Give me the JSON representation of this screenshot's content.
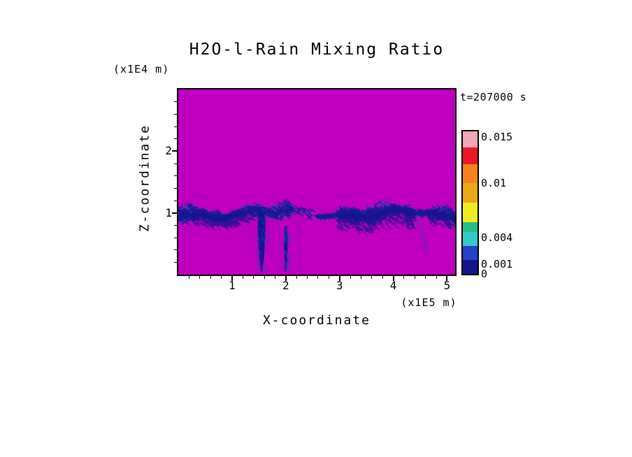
{
  "chart_data": {
    "type": "heatmap",
    "title": "H2O-l-Rain Mixing Ratio",
    "timestamp": "t=207000 s",
    "xlabel": "X-coordinate",
    "x_unit": "(x1E5 m)",
    "ylabel": "Z-coordinate",
    "y_unit": "(x1E4 m)",
    "x_axis": {
      "min": 0,
      "max": 5.15,
      "major_ticks": [
        {
          "value": 1,
          "label": "1"
        },
        {
          "value": 2,
          "label": "2"
        },
        {
          "value": 3,
          "label": "3"
        },
        {
          "value": 4,
          "label": "4"
        },
        {
          "value": 5,
          "label": "5"
        }
      ],
      "minor_step": 0.2
    },
    "z_axis": {
      "min": 0,
      "max": 3,
      "major_ticks": [
        {
          "value": 1,
          "label": "1"
        },
        {
          "value": 2,
          "label": "2"
        }
      ],
      "minor_step": 0.2
    },
    "field": {
      "background_color": "#BE00BE",
      "streak_colors": [
        "#14148C",
        "#2840C8",
        "#4868D8"
      ],
      "rain_layer_z": 1.0,
      "band_gap_x": [
        2.12,
        2.6
      ],
      "shafts_x": [
        1.55,
        2.0
      ],
      "weak_streak_x": 4.45
    },
    "colorbar": {
      "segments": [
        {
          "color": "#F0A8B8",
          "h": 0.112
        },
        {
          "color": "#E81828",
          "h": 0.118
        },
        {
          "color": "#F5821F",
          "h": 0.132
        },
        {
          "color": "#E8A818",
          "h": 0.137
        },
        {
          "color": "#ECEC20",
          "h": 0.137
        },
        {
          "color": "#2BBB88",
          "h": 0.069
        },
        {
          "color": "#35C8C8",
          "h": 0.098
        },
        {
          "color": "#2840C8",
          "h": 0.098
        },
        {
          "color": "#14148C",
          "h": 0.099
        }
      ],
      "labels": [
        {
          "text": "0.015",
          "pos": 0.039
        },
        {
          "text": "0.01",
          "pos": 0.363
        },
        {
          "text": "0.004",
          "pos": 0.745
        },
        {
          "text": "0.001",
          "pos": 0.931
        },
        {
          "text": "0",
          "pos": 1.0
        }
      ]
    }
  }
}
